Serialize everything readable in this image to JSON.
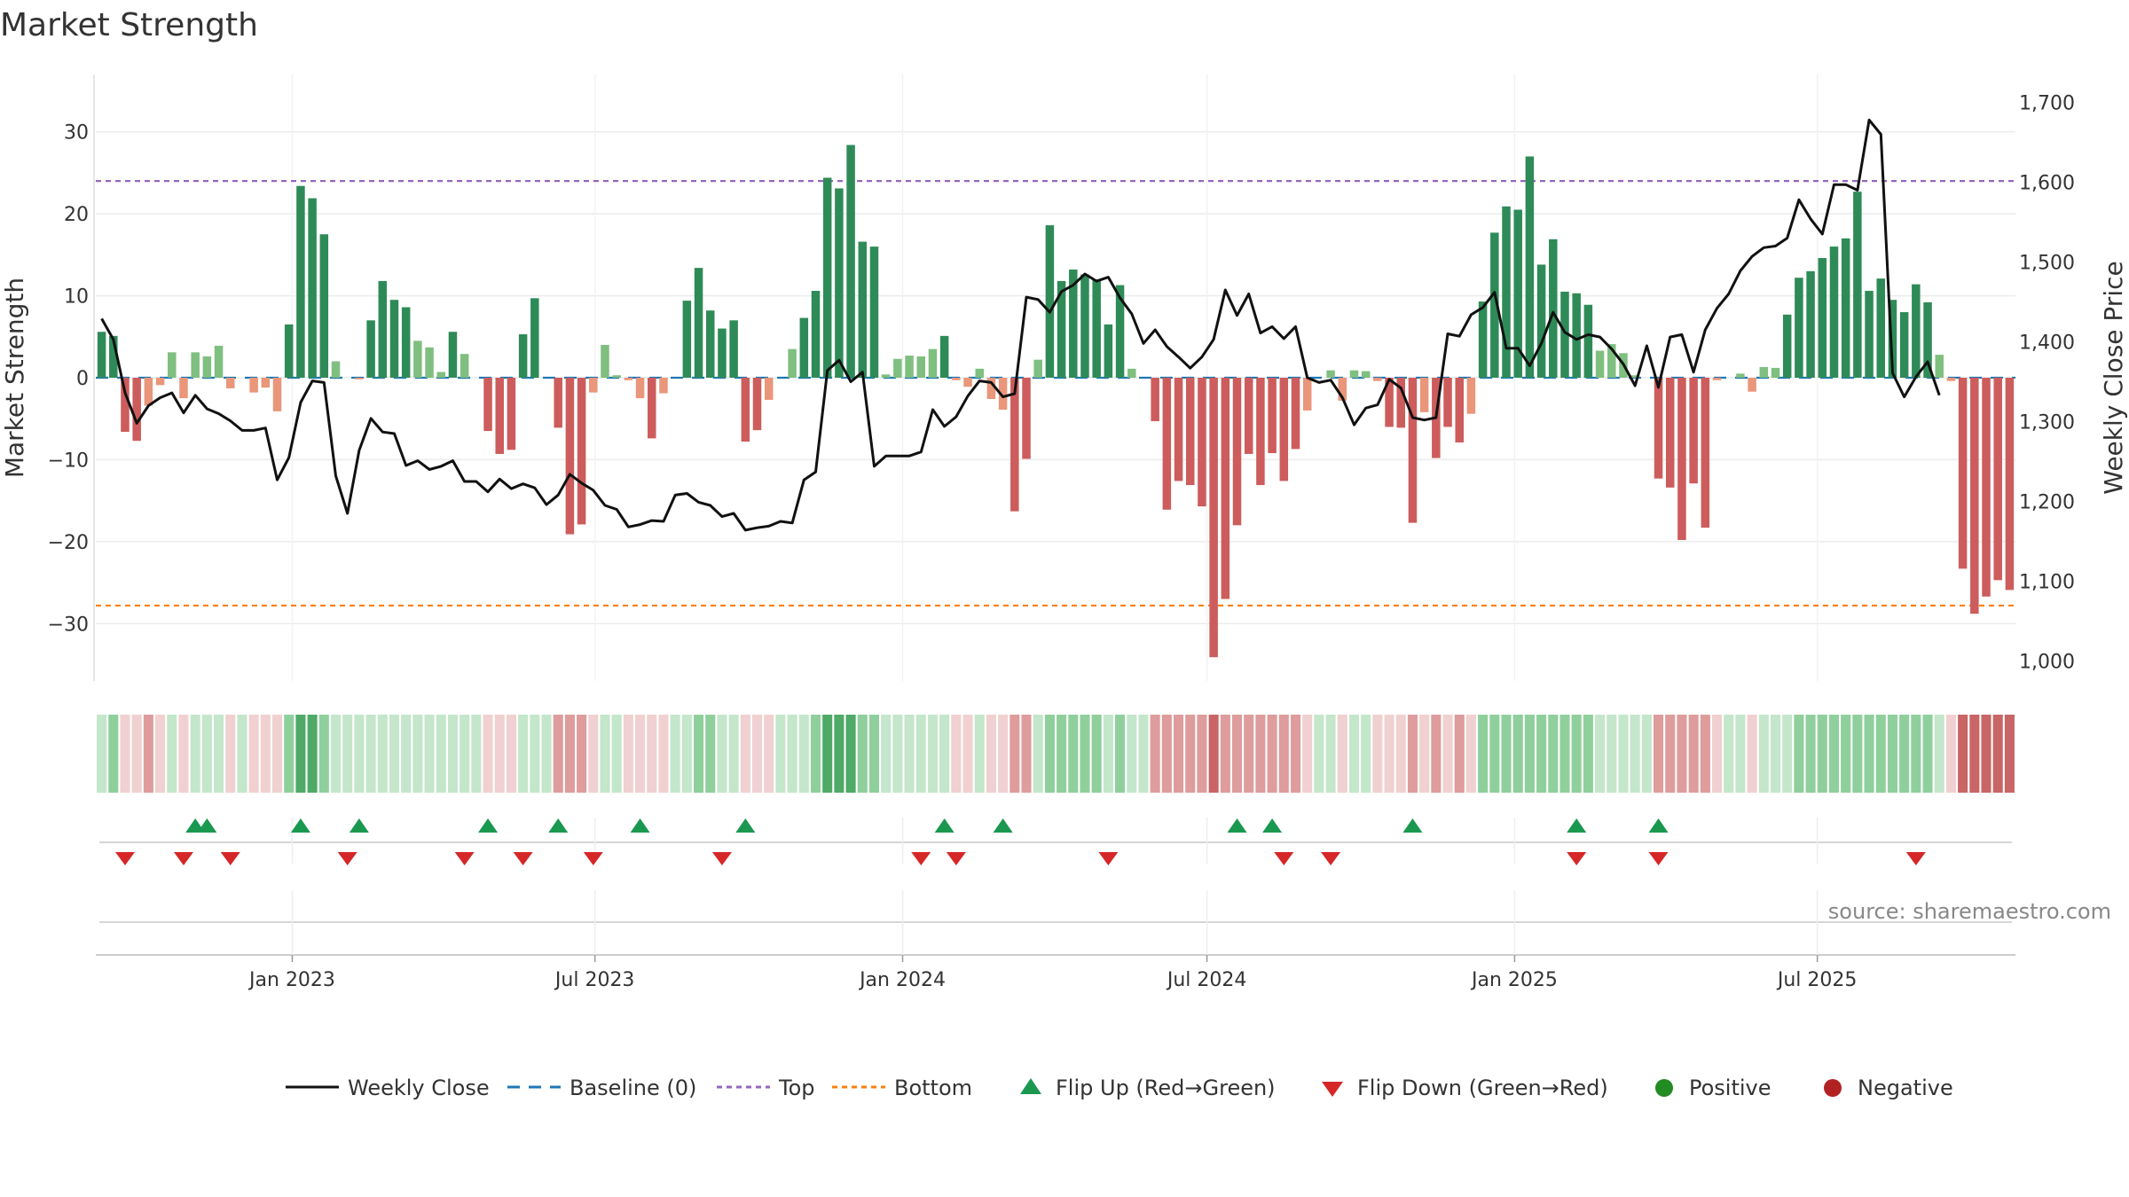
{
  "title": "Market Strength",
  "source": "source: sharemaestro.com",
  "chart_data": {
    "type": "bar",
    "title": "Market Strength",
    "ylabel_left": "Market Strength",
    "ylabel_right": "Weekly Close Price",
    "ylim_left": [
      -37,
      37
    ],
    "ylim_right": [
      975,
      1735
    ],
    "left_ticks": [
      -30,
      -20,
      -10,
      0,
      10,
      20,
      30
    ],
    "left_tick_labels": [
      "−30",
      "−20",
      "−10",
      "0",
      "10",
      "20",
      "30"
    ],
    "right_ticks": [
      1000,
      1100,
      1200,
      1300,
      1400,
      1500,
      1600,
      1700
    ],
    "right_tick_labels": [
      "1,000",
      "1,100",
      "1,200",
      "1,300",
      "1,400",
      "1,500",
      "1,600",
      "1,700"
    ],
    "x_tick_labels": [
      "Jan 2023",
      "Jul 2023",
      "Jan 2024",
      "Jul 2024",
      "Jan 2025",
      "Jul 2025"
    ],
    "x_tick_dates": [
      "2023-01-01",
      "2023-07-01",
      "2024-01-01",
      "2024-07-01",
      "2025-01-01",
      "2025-07-01"
    ],
    "first_week": "2022-09-09",
    "week_step_days": 7,
    "grid": true,
    "reference_lines": [
      {
        "name": "Baseline (0)",
        "value": 0,
        "color": "#1f77b4",
        "style": "dashed"
      },
      {
        "name": "Top",
        "value": 24,
        "color": "#9467bd",
        "style": "dotted"
      },
      {
        "name": "Bottom",
        "value": -27.8,
        "color": "#ff7f0e",
        "style": "dotted"
      }
    ],
    "series": [
      {
        "name": "Market Strength",
        "values": [
          5.6,
          5.1,
          -6.6,
          -7.7,
          -3.4,
          -0.9,
          3.1,
          -2.5,
          3.1,
          2.6,
          3.9,
          -1.3,
          0,
          -1.8,
          -1.2,
          -4.1,
          6.5,
          23.4,
          21.9,
          17.5,
          2.0,
          0,
          -0.2,
          7.0,
          11.8,
          9.5,
          8.6,
          4.5,
          3.7,
          0.7,
          5.6,
          2.9,
          0,
          -6.5,
          -9.3,
          -8.8,
          5.3,
          9.7,
          0,
          -6.1,
          -19.1,
          -17.9,
          -1.8,
          4.0,
          0.3,
          -0.3,
          -2.5,
          -7.4,
          -1.9,
          0,
          9.4,
          13.4,
          8.2,
          6.0,
          7.0,
          -7.8,
          -6.4,
          -2.7,
          0,
          3.5,
          7.3,
          10.6,
          24.4,
          23.1,
          28.4,
          16.6,
          16.0,
          0.4,
          2.3,
          2.7,
          2.6,
          3.5,
          5.1,
          -0.3,
          -1.1,
          1.1,
          -2.6,
          -3.9,
          -16.3,
          -9.9,
          2.2,
          18.6,
          11.8,
          13.2,
          12.6,
          12.0,
          6.5,
          11.3,
          1.1,
          0,
          -5.3,
          -16.1,
          -12.6,
          -13.1,
          -15.7,
          -34.1,
          -27.0,
          -18.0,
          -9.3,
          -13.1,
          -9.2,
          -12.6,
          -8.7,
          -4.0,
          0,
          0.9,
          -2.8,
          0.9,
          0.8,
          -0.4,
          -6.0,
          -6.1,
          -17.7,
          -4.2,
          -9.8,
          -6.0,
          -7.9,
          -4.4,
          9.3,
          17.7,
          20.9,
          20.5,
          27.0,
          13.8,
          16.9,
          10.5,
          10.3,
          8.9,
          3.3,
          4.1,
          3.0,
          0.3,
          0,
          -12.3,
          -13.4,
          -19.8,
          -12.9,
          -18.3,
          -0.3,
          0,
          0.5,
          -1.7,
          1.3,
          1.2,
          7.7,
          12.2,
          13.0,
          14.6,
          16.0,
          17.0,
          22.7,
          10.6,
          12.1,
          9.5,
          8.0,
          11.4,
          9.2,
          2.8,
          -0.4,
          -23.3,
          -28.8,
          -26.7,
          -24.7,
          -25.9
        ],
        "color_positive_strong": "#2e8b57",
        "color_positive_weak": "#7fbf7f",
        "color_negative_strong": "#cd5c5c",
        "color_negative_weak": "#e9967a"
      },
      {
        "name": "Weekly Close",
        "color": "#111111",
        "values": [
          1429,
          1403,
          1336,
          1298,
          1320,
          1330,
          1336,
          1311,
          1333,
          1316,
          1310,
          1301,
          1289,
          1289,
          1292,
          1227,
          1255,
          1324,
          1351,
          1349,
          1232,
          1185,
          1264,
          1304,
          1287,
          1285,
          1245,
          1251,
          1240,
          1244,
          1251,
          1225,
          1225,
          1212,
          1228,
          1216,
          1222,
          1217,
          1196,
          1208,
          1234,
          1223,
          1214,
          1195,
          1190,
          1168,
          1171,
          1176,
          1175,
          1208,
          1210,
          1199,
          1195,
          1181,
          1185,
          1164,
          1167,
          1169,
          1175,
          1173,
          1227,
          1237,
          1364,
          1377,
          1350,
          1362,
          1244,
          1257,
          1257,
          1257,
          1262,
          1315,
          1294,
          1306,
          1332,
          1351,
          1349,
          1331,
          1335,
          1456,
          1453,
          1437,
          1463,
          1471,
          1485,
          1476,
          1481,
          1455,
          1435,
          1398,
          1415,
          1394,
          1381,
          1367,
          1381,
          1403,
          1465,
          1433,
          1460,
          1411,
          1419,
          1404,
          1419,
          1355,
          1349,
          1352,
          1330,
          1296,
          1317,
          1321,
          1353,
          1342,
          1305,
          1302,
          1305,
          1410,
          1407,
          1434,
          1443,
          1462,
          1392,
          1392,
          1370,
          1398,
          1437,
          1412,
          1403,
          1409,
          1406,
          1391,
          1372,
          1345,
          1395,
          1343,
          1406,
          1409,
          1362,
          1415,
          1442,
          1460,
          1489,
          1507,
          1518,
          1520,
          1530,
          1578,
          1554,
          1535,
          1597,
          1597,
          1590,
          1678,
          1660,
          1361,
          1331,
          1356,
          1375,
          1333
        ]
      }
    ],
    "strength_band": {
      "name": "Strength band",
      "levels": [
        1,
        2,
        -1,
        -1,
        -2,
        -1,
        1,
        -1,
        1,
        1,
        1,
        -1,
        1,
        -1,
        -1,
        -1,
        2,
        3,
        3,
        2,
        1,
        1,
        1,
        1,
        1,
        1,
        1,
        1,
        1,
        1,
        1,
        1,
        1,
        -1,
        -1,
        -1,
        1,
        1,
        1,
        -2,
        -2,
        -2,
        -1,
        1,
        1,
        -1,
        -1,
        -1,
        -1,
        1,
        1,
        2,
        2,
        1,
        1,
        -1,
        -1,
        -1,
        1,
        1,
        1,
        2,
        3,
        3,
        3,
        2,
        2,
        1,
        1,
        1,
        1,
        1,
        1,
        -1,
        -1,
        1,
        -1,
        -1,
        -2,
        -2,
        1,
        2,
        2,
        2,
        2,
        2,
        1,
        2,
        1,
        1,
        -2,
        -2,
        -2,
        -2,
        -2,
        -3,
        -2,
        -2,
        -2,
        -2,
        -2,
        -2,
        -2,
        -1,
        1,
        1,
        -1,
        1,
        1,
        -1,
        -1,
        -1,
        -2,
        -1,
        -2,
        -1,
        -2,
        -1,
        2,
        2,
        2,
        2,
        2,
        2,
        2,
        2,
        2,
        2,
        1,
        1,
        1,
        1,
        1,
        -2,
        -2,
        -2,
        -2,
        -2,
        -1,
        1,
        1,
        -1,
        1,
        1,
        1,
        2,
        2,
        2,
        2,
        2,
        2,
        2,
        2,
        2,
        2,
        2,
        2,
        1,
        -1,
        -3,
        -3,
        -3,
        -3,
        -3
      ]
    },
    "flip_up_weeks": [
      8,
      9,
      17,
      22,
      33,
      39,
      46,
      55,
      72,
      77,
      97,
      100,
      112,
      126,
      133
    ],
    "flip_down_weeks": [
      2,
      7,
      11,
      21,
      31,
      36,
      42,
      53,
      70,
      73,
      86,
      101,
      105,
      126,
      133,
      155
    ],
    "markers": [
      {
        "name": "Flip Up (Red→Green)",
        "color": "#1a9850",
        "shape": "triangle-up"
      },
      {
        "name": "Flip Down (Green→Red)",
        "color": "#d62728",
        "shape": "triangle-down"
      },
      {
        "name": "Positive",
        "color": "#228b22",
        "shape": "circle"
      },
      {
        "name": "Negative",
        "color": "#b22222",
        "shape": "circle"
      }
    ],
    "legend": {
      "placement": "bottom-center",
      "items": [
        {
          "label": "Weekly Close",
          "kind": "line-solid",
          "color": "#111111"
        },
        {
          "label": "Baseline (0)",
          "kind": "line-dashed",
          "color": "#1f77b4"
        },
        {
          "label": "Top",
          "kind": "line-dotted",
          "color": "#9467bd"
        },
        {
          "label": "Bottom",
          "kind": "line-dotted",
          "color": "#ff7f0e"
        },
        {
          "label": "Flip Up (Red→Green)",
          "kind": "triangle-up",
          "color": "#1a9850"
        },
        {
          "label": "Flip Down (Green→Red)",
          "kind": "triangle-down",
          "color": "#d62728"
        },
        {
          "label": "Positive",
          "kind": "circle",
          "color": "#228b22"
        },
        {
          "label": "Negative",
          "kind": "circle",
          "color": "#b22222"
        }
      ]
    }
  }
}
